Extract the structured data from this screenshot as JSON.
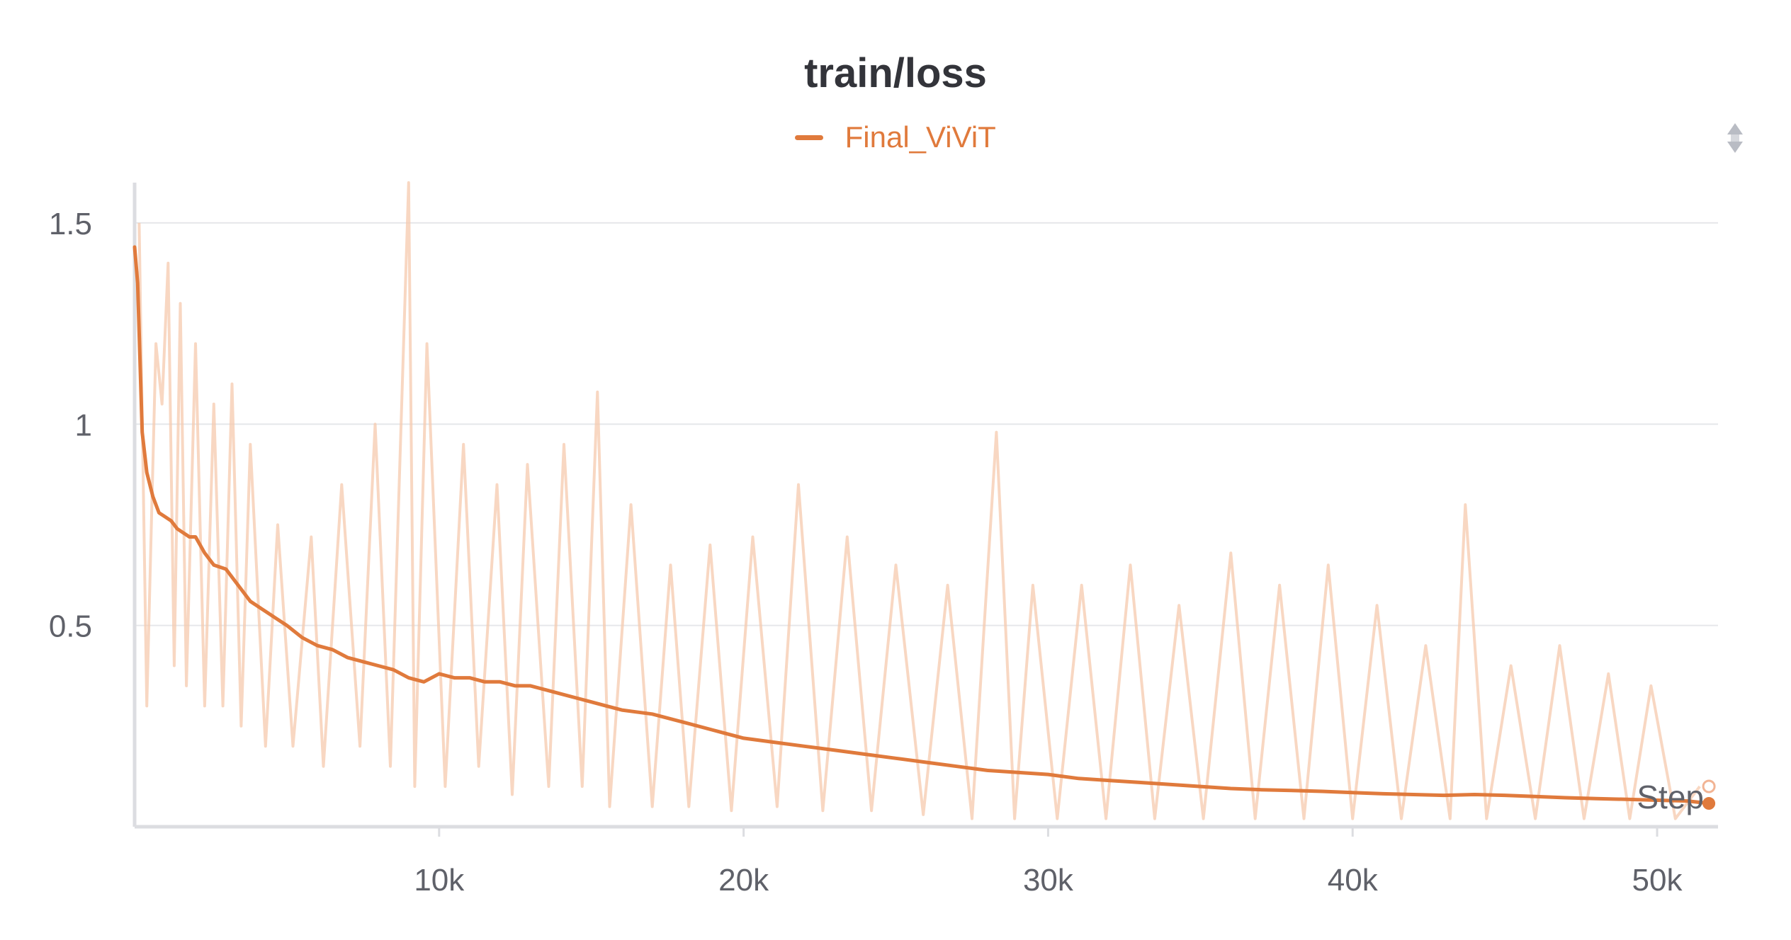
{
  "chart_data": {
    "type": "line",
    "title": "train/loss",
    "xlabel": "Step",
    "ylabel": "",
    "xlim": [
      0,
      52000
    ],
    "ylim": [
      0,
      1.6
    ],
    "x_ticks": [
      10000,
      20000,
      30000,
      40000,
      50000
    ],
    "x_tick_labels": [
      "10k",
      "20k",
      "30k",
      "40k",
      "50k"
    ],
    "y_ticks": [
      0.5,
      1,
      1.5
    ],
    "y_tick_labels": [
      "0.5",
      "1",
      "1.5"
    ],
    "grid": true,
    "legend_position": "top-center",
    "series": [
      {
        "name": "Final_ViViT",
        "color": "#e07a3c",
        "smoothed": {
          "x": [
            0,
            100,
            250,
            400,
            600,
            800,
            1000,
            1200,
            1400,
            1600,
            1800,
            2000,
            2300,
            2600,
            3000,
            3400,
            3800,
            4200,
            4600,
            5000,
            5500,
            6000,
            6500,
            7000,
            7500,
            8000,
            8500,
            9000,
            9500,
            10000,
            10500,
            11000,
            11500,
            12000,
            12500,
            13000,
            13500,
            14000,
            14500,
            15000,
            15500,
            16000,
            17000,
            18000,
            19000,
            20000,
            21000,
            22000,
            23000,
            24000,
            25000,
            26000,
            27000,
            28000,
            29000,
            30000,
            31000,
            32000,
            33000,
            34000,
            35000,
            36000,
            37000,
            38000,
            39000,
            40000,
            41000,
            42000,
            43000,
            44000,
            45000,
            46000,
            47000,
            48000,
            49000,
            50000,
            51000,
            51700
          ],
          "y": [
            1.44,
            1.35,
            0.98,
            0.88,
            0.82,
            0.78,
            0.77,
            0.76,
            0.74,
            0.73,
            0.72,
            0.72,
            0.68,
            0.65,
            0.64,
            0.6,
            0.56,
            0.54,
            0.52,
            0.5,
            0.47,
            0.45,
            0.44,
            0.42,
            0.41,
            0.4,
            0.39,
            0.37,
            0.36,
            0.38,
            0.37,
            0.37,
            0.36,
            0.36,
            0.35,
            0.35,
            0.34,
            0.33,
            0.32,
            0.31,
            0.3,
            0.29,
            0.28,
            0.26,
            0.24,
            0.22,
            0.21,
            0.2,
            0.19,
            0.18,
            0.17,
            0.16,
            0.15,
            0.14,
            0.135,
            0.13,
            0.12,
            0.115,
            0.11,
            0.105,
            0.1,
            0.095,
            0.092,
            0.09,
            0.088,
            0.085,
            0.082,
            0.08,
            0.078,
            0.08,
            0.078,
            0.075,
            0.072,
            0.07,
            0.068,
            0.066,
            0.064,
            0.058
          ]
        },
        "raw_peaks": {
          "x": [
            150,
            400,
            700,
            900,
            1100,
            1300,
            1500,
            1700,
            2000,
            2300,
            2600,
            2900,
            3200,
            3500,
            3800,
            4300,
            4700,
            5200,
            5800,
            6200,
            6800,
            7400,
            7900,
            8400,
            9000,
            9200,
            9600,
            10200,
            10800,
            11300,
            11900,
            12400,
            12900,
            13600,
            14100,
            14700,
            15200,
            15600,
            16300,
            17000,
            17600,
            18200,
            18900,
            19600,
            20300,
            21100,
            21800,
            22600,
            23400,
            24200,
            25000,
            25900,
            26700,
            27500,
            28300,
            28900,
            29500,
            30300,
            31100,
            31900,
            32700,
            33500,
            34300,
            35100,
            36000,
            36800,
            37600,
            38400,
            39200,
            40000,
            40800,
            41600,
            42400,
            43200,
            43700,
            44400,
            45200,
            46000,
            46800,
            47600,
            48400,
            49100,
            49800,
            50600,
            51400
          ],
          "y": [
            1.5,
            0.3,
            1.2,
            1.05,
            1.4,
            0.4,
            1.3,
            0.35,
            1.2,
            0.3,
            1.05,
            0.3,
            1.1,
            0.25,
            0.95,
            0.2,
            0.75,
            0.2,
            0.72,
            0.15,
            0.85,
            0.2,
            1.0,
            0.15,
            1.6,
            0.1,
            1.2,
            0.1,
            0.95,
            0.15,
            0.85,
            0.08,
            0.9,
            0.1,
            0.95,
            0.1,
            1.08,
            0.05,
            0.8,
            0.05,
            0.65,
            0.05,
            0.7,
            0.04,
            0.72,
            0.05,
            0.85,
            0.04,
            0.72,
            0.04,
            0.65,
            0.03,
            0.6,
            0.02,
            0.98,
            0.02,
            0.6,
            0.02,
            0.6,
            0.02,
            0.65,
            0.02,
            0.55,
            0.02,
            0.68,
            0.02,
            0.6,
            0.02,
            0.65,
            0.02,
            0.55,
            0.02,
            0.45,
            0.02,
            0.8,
            0.02,
            0.4,
            0.02,
            0.45,
            0.02,
            0.38,
            0.02,
            0.35,
            0.02,
            0.1
          ]
        }
      }
    ]
  }
}
